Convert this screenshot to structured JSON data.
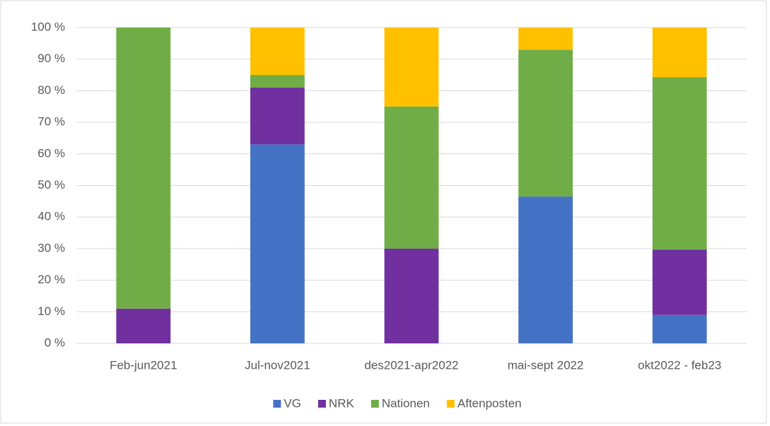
{
  "chart_data": {
    "type": "stacked_bar",
    "categories": [
      "Feb-jun2021",
      "Jul-nov2021",
      "des2021-apr2022",
      "mai-sept 2022",
      "okt2022 - feb23"
    ],
    "series": [
      {
        "name": "VG",
        "color": "#4472c4",
        "values": [
          0,
          63,
          0,
          46.5,
          9
        ]
      },
      {
        "name": "NRK",
        "color": "#7030a0",
        "values": [
          11,
          18,
          30,
          0,
          20.7
        ]
      },
      {
        "name": "Nationen",
        "color": "#70ad47",
        "values": [
          89,
          4,
          45,
          46.5,
          54.6
        ]
      },
      {
        "name": "Aftenposten",
        "color": "#ffc000",
        "values": [
          0,
          15,
          25,
          7,
          15.7
        ]
      }
    ],
    "ylim": [
      0,
      100
    ],
    "yticks": [
      {
        "value": 0,
        "label": "0 %"
      },
      {
        "value": 10,
        "label": "10 %"
      },
      {
        "value": 20,
        "label": "20 %"
      },
      {
        "value": 30,
        "label": "30 %"
      },
      {
        "value": 40,
        "label": "40 %"
      },
      {
        "value": 50,
        "label": "50 %"
      },
      {
        "value": 60,
        "label": "60 %"
      },
      {
        "value": 70,
        "label": "70 %"
      },
      {
        "value": 80,
        "label": "80 %"
      },
      {
        "value": 90,
        "label": "90 %"
      },
      {
        "value": 100,
        "label": "100 %"
      }
    ],
    "grid": true,
    "legend": "bottom"
  }
}
